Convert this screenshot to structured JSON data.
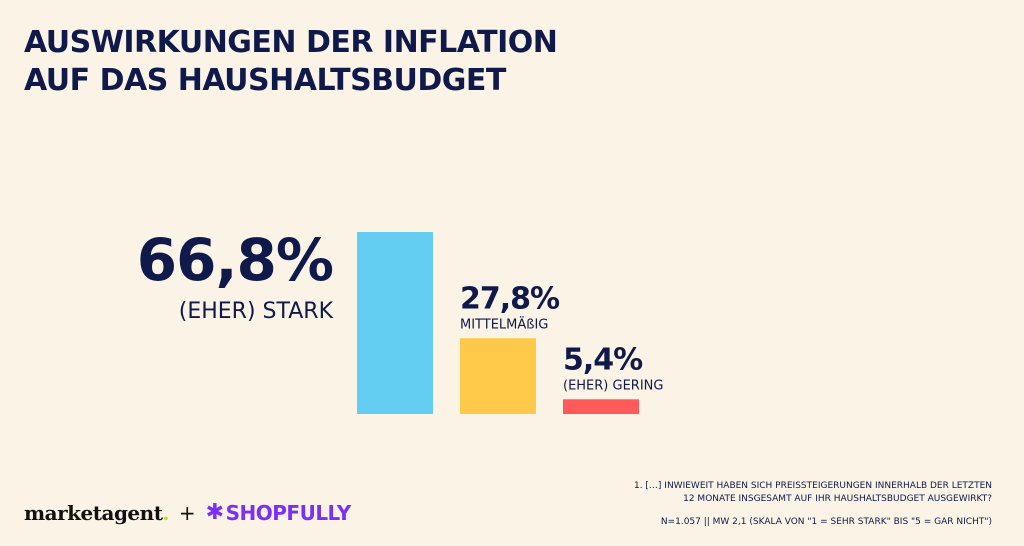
{
  "title": {
    "line1": "AUSWIRKUNGEN DER INFLATION",
    "line2": "AUF DAS HAUSHALTSBUDGET"
  },
  "chart_data": {
    "type": "bar",
    "title": "AUSWIRKUNGEN DER INFLATION AUF DAS HAUSHALTSBUDGET",
    "categories": [
      "(EHER) STARK",
      "MITTELMÄßIG",
      "(EHER) GERING"
    ],
    "values": [
      66.8,
      27.8,
      5.4
    ],
    "value_labels": [
      "66,8%",
      "27,8%",
      "5,4%"
    ],
    "colors": [
      "#63CDF2",
      "#FFC94A",
      "#FF5A5A"
    ],
    "unit": "%",
    "ylim": [
      0,
      66.8
    ],
    "xlabel": "",
    "ylabel": "",
    "grid": false,
    "legend": "none"
  },
  "footnote": {
    "line1": "1. […] INWIEWEIT HABEN SICH PREISSTEIGERUNGEN INNERHALB DER LETZTEN",
    "line2": "12 MONATE INSGESAMT AUF IHR HAUSHALTSBUDGET AUSGEWIRKT?",
    "line3": "N=1.057 || MW 2,1 (SKALA VON \"1 = SEHR STARK\" BIS \"5 = GAR NICHT\")"
  },
  "logos": {
    "marketagent": "marketagent",
    "marketagent_dot": ".",
    "plus": "+",
    "shopfully": "SHOPFULLY",
    "shopfully_star": "✱"
  }
}
